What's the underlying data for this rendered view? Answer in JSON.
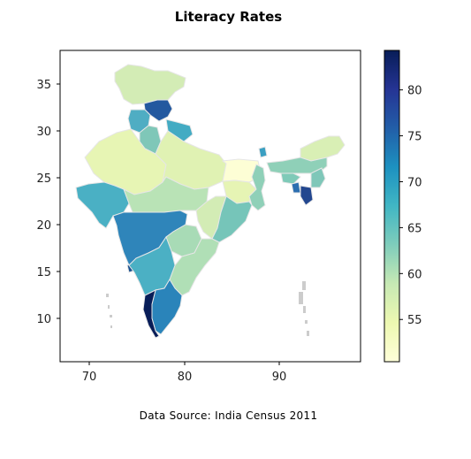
{
  "title": "Literacy Rates",
  "caption": "Data Source: India Census 2011",
  "map": {
    "x_ticks": [
      "70",
      "80",
      "90"
    ],
    "y_ticks": [
      "35",
      "30",
      "25",
      "20",
      "15",
      "10"
    ],
    "x_tick_values": [
      70,
      80,
      90
    ],
    "y_tick_values": [
      35,
      30,
      25,
      20,
      15,
      10
    ],
    "xlim": [
      67,
      99
    ],
    "ylim": [
      5,
      39
    ],
    "grid": false
  },
  "colorbar": {
    "ticks": [
      "80",
      "75",
      "70",
      "65",
      "60",
      "55"
    ],
    "tick_values": [
      80,
      75,
      70,
      65,
      60,
      55
    ],
    "range": [
      50.4,
      84.3
    ],
    "colormap": "YlGnBu"
  },
  "colors": {
    "no_data": "#cccccc",
    "border": "#e6e6e6",
    "frame": "#000000"
  }
}
